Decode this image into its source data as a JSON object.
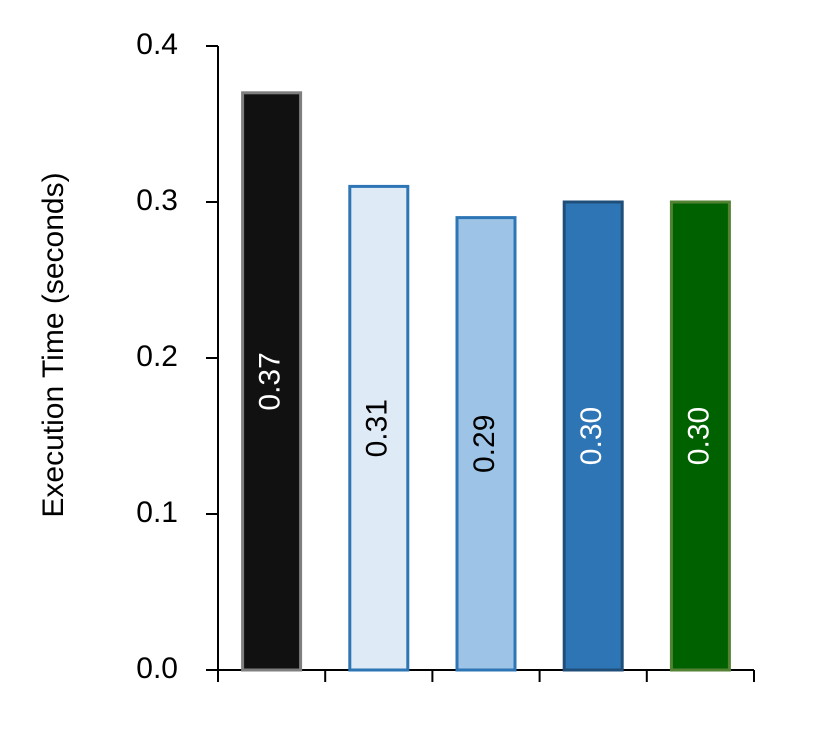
{
  "chart_data": {
    "type": "bar",
    "y_label": "Execution Time (seconds)",
    "categories": [
      null,
      null,
      null,
      null,
      null
    ],
    "values": [
      0.37,
      0.31,
      0.29,
      0.3,
      0.3
    ],
    "value_labels": [
      "0.37",
      "0.31",
      "0.29",
      "0.30",
      "0.30"
    ],
    "colors": [
      "#111111",
      "#deebf7",
      "#9dc3e6",
      "#2e75b6",
      "#006100"
    ],
    "edge_colors": [
      "#7f7f7f",
      "#2e75b6",
      "#2e75b6",
      "#1f4e79",
      "#548235"
    ],
    "ylim": [
      0,
      0.4
    ],
    "yticks": [
      {
        "value": 0,
        "label": "0.0"
      },
      0.1,
      0.2,
      0.3,
      0.4
    ],
    "grid": false
  }
}
